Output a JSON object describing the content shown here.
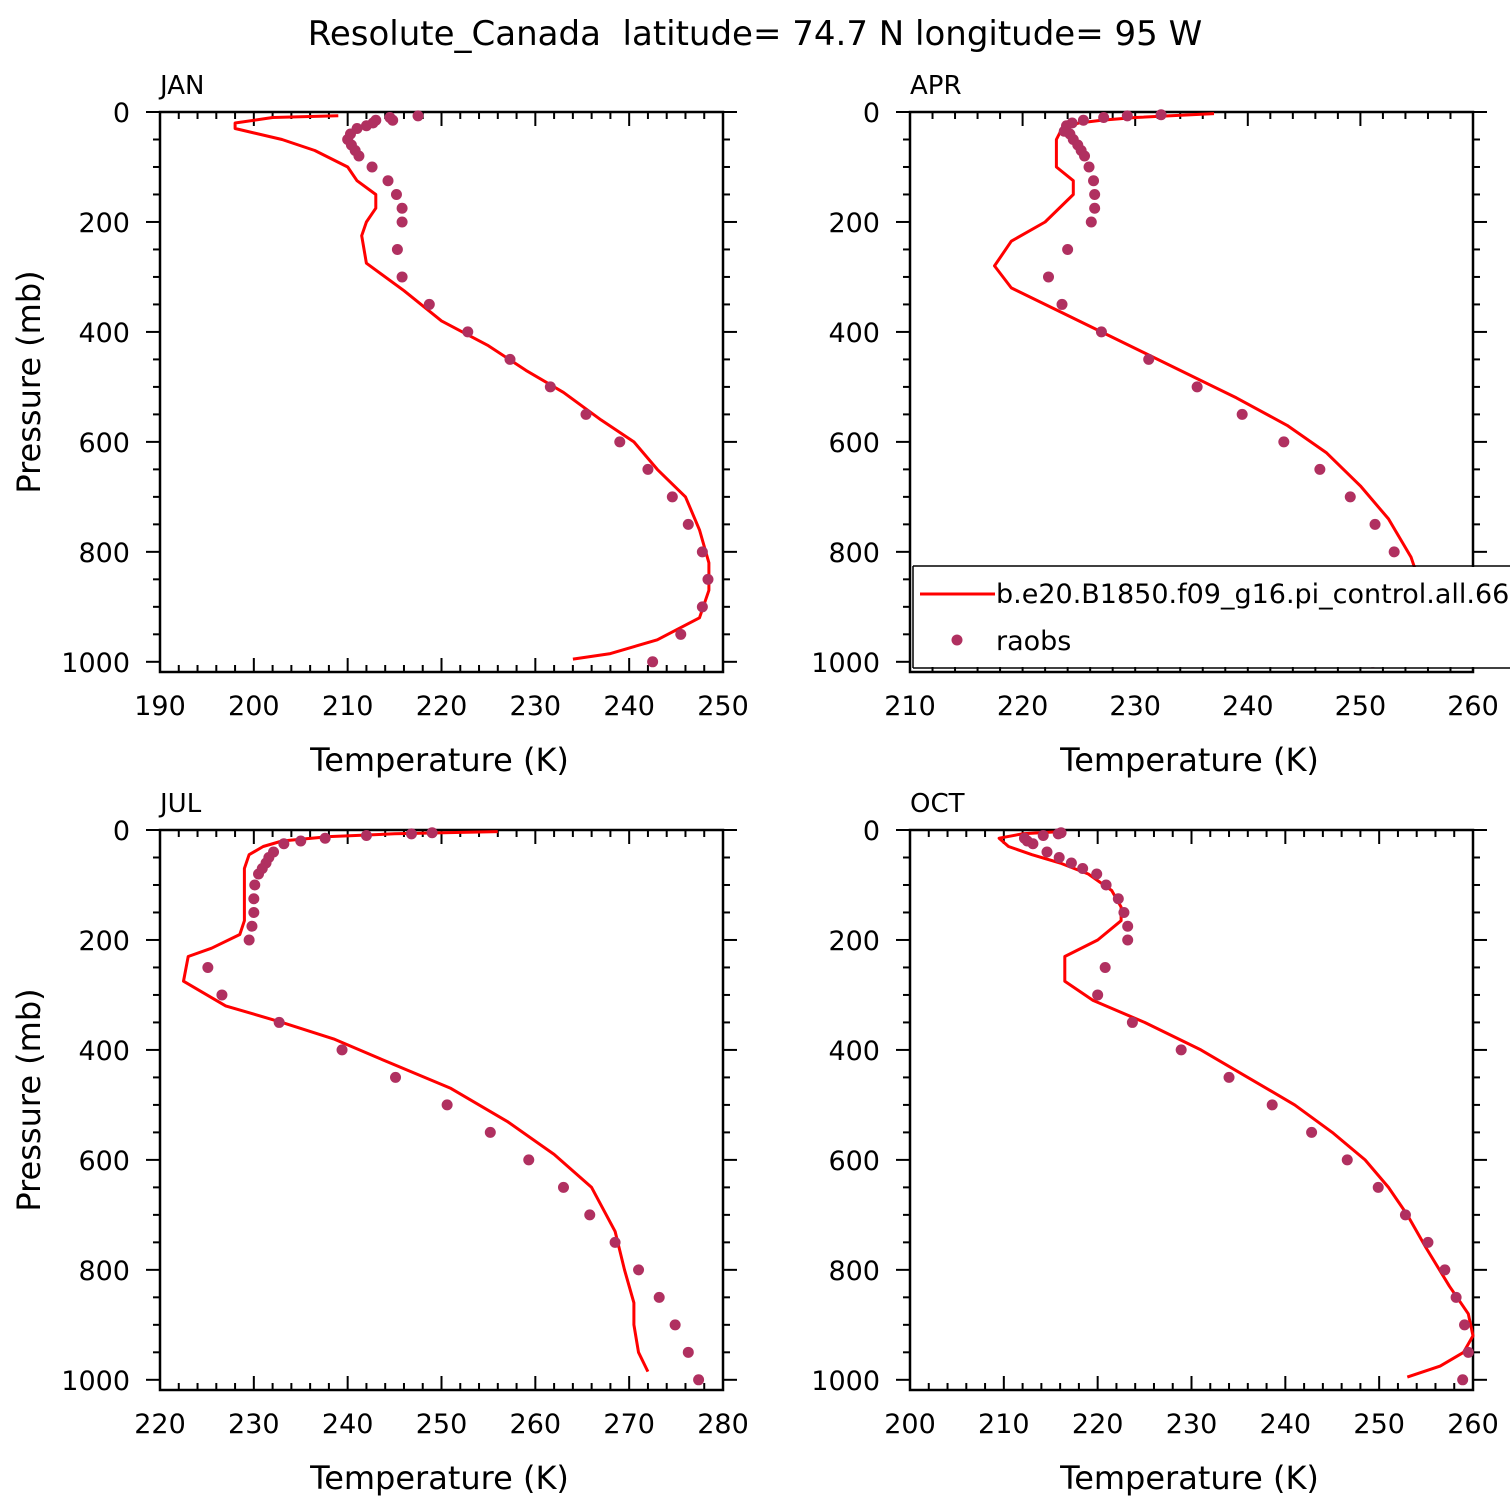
{
  "figure": {
    "title": "Resolute_Canada  latitude= 74.7 N longitude= 95 W",
    "xlabel": "Temperature (K)",
    "ylabel": "Pressure (mb)",
    "legend": {
      "model": "b.e20.B1850.f09_g16.pi_control.all.66",
      "obs": "raobs",
      "placement": "bottom-right of APR panel"
    },
    "colors": {
      "model": "#ff0000",
      "obs": "#b03060",
      "axes": "#000000"
    }
  },
  "chart_data": [
    {
      "type": "line+scatter",
      "panel": "JAN",
      "xlim": [
        190,
        250
      ],
      "ylim": [
        1000,
        0
      ],
      "y_reversed": true,
      "xticks": [
        190,
        200,
        210,
        220,
        230,
        240,
        250
      ],
      "yticks": [
        0,
        200,
        400,
        600,
        800,
        1000
      ],
      "series": [
        {
          "name": "b.e20.B1850.f09_g16.pi_control.all.66",
          "kind": "line",
          "points": [
            [
              209,
              7
            ],
            [
              202,
              10
            ],
            [
              198,
              20
            ],
            [
              198,
              30
            ],
            [
              203,
              50
            ],
            [
              206.5,
              70
            ],
            [
              210,
              100
            ],
            [
              211,
              125
            ],
            [
              213,
              150
            ],
            [
              213,
              175
            ],
            [
              212,
              200
            ],
            [
              211.5,
              225
            ],
            [
              212,
              275
            ],
            [
              216,
              325
            ],
            [
              220,
              380
            ],
            [
              225,
              425
            ],
            [
              229,
              470
            ],
            [
              233,
              510
            ],
            [
              237,
              560
            ],
            [
              240.5,
              600
            ],
            [
              243,
              650
            ],
            [
              246,
              700
            ],
            [
              247.5,
              760
            ],
            [
              248.5,
              820
            ],
            [
              248.5,
              870
            ],
            [
              247.5,
              920
            ],
            [
              243,
              960
            ],
            [
              238,
              985
            ],
            [
              234,
              995
            ]
          ]
        },
        {
          "name": "raobs",
          "kind": "scatter",
          "points": [
            [
              217.5,
              7
            ],
            [
              214.5,
              10
            ],
            [
              213,
              15
            ],
            [
              214.8,
              15
            ],
            [
              212.7,
              20
            ],
            [
              212,
              25
            ],
            [
              211,
              30
            ],
            [
              210.3,
              40
            ],
            [
              210,
              50
            ],
            [
              210.4,
              60
            ],
            [
              210.8,
              70
            ],
            [
              211.2,
              80
            ],
            [
              212.6,
              100
            ],
            [
              214.3,
              125
            ],
            [
              215.2,
              150
            ],
            [
              215.8,
              175
            ],
            [
              215.8,
              200
            ],
            [
              215.3,
              250
            ],
            [
              215.8,
              300
            ],
            [
              218.7,
              350
            ],
            [
              222.8,
              400
            ],
            [
              227.3,
              450
            ],
            [
              231.6,
              500
            ],
            [
              235.4,
              550
            ],
            [
              239,
              600
            ],
            [
              242,
              650
            ],
            [
              244.6,
              700
            ],
            [
              246.3,
              750
            ],
            [
              247.8,
              800
            ],
            [
              248.4,
              850
            ],
            [
              247.8,
              900
            ],
            [
              245.5,
              950
            ],
            [
              242.5,
              1000
            ]
          ]
        }
      ]
    },
    {
      "type": "line+scatter",
      "panel": "APR",
      "xlim": [
        210,
        260
      ],
      "ylim": [
        1000,
        0
      ],
      "y_reversed": true,
      "xticks": [
        210,
        220,
        230,
        240,
        250,
        260
      ],
      "yticks": [
        0,
        200,
        400,
        600,
        800,
        1000
      ],
      "series": [
        {
          "name": "b.e20.B1850.f09_g16.pi_control.all.66",
          "kind": "line",
          "points": [
            [
              237,
              3
            ],
            [
              230,
              10
            ],
            [
              227,
              15
            ],
            [
              225,
              20
            ],
            [
              223.5,
              30
            ],
            [
              223,
              50
            ],
            [
              223,
              80
            ],
            [
              223,
              100
            ],
            [
              224.5,
              125
            ],
            [
              224.5,
              150
            ],
            [
              222,
              200
            ],
            [
              219,
              235
            ],
            [
              217.5,
              280
            ],
            [
              219,
              320
            ],
            [
              224,
              370
            ],
            [
              229,
              420
            ],
            [
              234,
              470
            ],
            [
              239,
              520
            ],
            [
              243.5,
              570
            ],
            [
              247,
              620
            ],
            [
              250,
              680
            ],
            [
              252.5,
              740
            ],
            [
              254.5,
              810
            ],
            [
              255.5,
              870
            ],
            [
              255.5,
              920
            ],
            [
              253,
              960
            ],
            [
              249,
              985
            ],
            [
              247,
              995
            ]
          ]
        },
        {
          "name": "raobs",
          "kind": "scatter",
          "points": [
            [
              232.3,
              5
            ],
            [
              229.3,
              7
            ],
            [
              227.2,
              10
            ],
            [
              225.4,
              15
            ],
            [
              224.4,
              20
            ],
            [
              223.9,
              25
            ],
            [
              223.7,
              35
            ],
            [
              224.2,
              40
            ],
            [
              224.5,
              50
            ],
            [
              224.9,
              60
            ],
            [
              225.2,
              70
            ],
            [
              225.5,
              80
            ],
            [
              225.9,
              100
            ],
            [
              226.3,
              125
            ],
            [
              226.4,
              150
            ],
            [
              226.4,
              175
            ],
            [
              226.1,
              200
            ],
            [
              224.0,
              250
            ],
            [
              222.3,
              300
            ],
            [
              223.5,
              350
            ],
            [
              227,
              400
            ],
            [
              231.2,
              450
            ],
            [
              235.5,
              500
            ],
            [
              239.5,
              550
            ],
            [
              243.2,
              600
            ],
            [
              246.4,
              650
            ],
            [
              249.1,
              700
            ],
            [
              251.3,
              750
            ],
            [
              253,
              800
            ],
            [
              253.8,
              850
            ],
            [
              254,
              900
            ],
            [
              253.3,
              950
            ],
            [
              251.1,
              1000
            ]
          ]
        }
      ]
    },
    {
      "type": "line+scatter",
      "panel": "JUL",
      "xlim": [
        220,
        280
      ],
      "ylim": [
        1000,
        0
      ],
      "y_reversed": true,
      "xticks": [
        220,
        230,
        240,
        250,
        260,
        270,
        280
      ],
      "yticks": [
        0,
        200,
        400,
        600,
        800,
        1000
      ],
      "series": [
        {
          "name": "b.e20.B1850.f09_g16.pi_control.all.66",
          "kind": "line",
          "points": [
            [
              256,
              3
            ],
            [
              245,
              7
            ],
            [
              238,
              12
            ],
            [
              233,
              20
            ],
            [
              231,
              30
            ],
            [
              229.5,
              45
            ],
            [
              229,
              70
            ],
            [
              229,
              90
            ],
            [
              229,
              130
            ],
            [
              229,
              165
            ],
            [
              228.5,
              190
            ],
            [
              225.5,
              215
            ],
            [
              223,
              230
            ],
            [
              222.5,
              275
            ],
            [
              227,
              320
            ],
            [
              233,
              350
            ],
            [
              238.5,
              380
            ],
            [
              244,
              420
            ],
            [
              251,
              470
            ],
            [
              257,
              530
            ],
            [
              262,
              590
            ],
            [
              266,
              650
            ],
            [
              268.5,
              730
            ],
            [
              269.5,
              800
            ],
            [
              270.5,
              860
            ],
            [
              270.5,
              900
            ],
            [
              271,
              950
            ],
            [
              272,
              985
            ]
          ]
        },
        {
          "name": "raobs",
          "kind": "scatter",
          "points": [
            [
              249,
              5
            ],
            [
              246.8,
              7
            ],
            [
              242,
              10
            ],
            [
              237.6,
              15
            ],
            [
              235,
              20
            ],
            [
              233.2,
              25
            ],
            [
              232.1,
              40
            ],
            [
              231.6,
              50
            ],
            [
              231.3,
              60
            ],
            [
              230.9,
              70
            ],
            [
              230.5,
              80
            ],
            [
              230.1,
              100
            ],
            [
              230,
              125
            ],
            [
              230,
              150
            ],
            [
              229.8,
              175
            ],
            [
              229.5,
              200
            ],
            [
              225.1,
              250
            ],
            [
              226.6,
              300
            ],
            [
              232.7,
              350
            ],
            [
              239.4,
              400
            ],
            [
              245.1,
              450
            ],
            [
              250.6,
              500
            ],
            [
              255.2,
              550
            ],
            [
              259.3,
              600
            ],
            [
              263,
              650
            ],
            [
              265.8,
              700
            ],
            [
              268.5,
              750
            ],
            [
              271,
              800
            ],
            [
              273.2,
              850
            ],
            [
              274.9,
              900
            ],
            [
              276.3,
              950
            ],
            [
              277.4,
              1000
            ]
          ]
        }
      ]
    },
    {
      "type": "line+scatter",
      "panel": "OCT",
      "xlim": [
        200,
        260
      ],
      "ylim": [
        1000,
        0
      ],
      "y_reversed": true,
      "xticks": [
        200,
        210,
        220,
        230,
        240,
        250,
        260
      ],
      "yticks": [
        0,
        200,
        400,
        600,
        800,
        1000
      ],
      "series": [
        {
          "name": "b.e20.B1850.f09_g16.pi_control.all.66",
          "kind": "line",
          "points": [
            [
              216,
              3
            ],
            [
              212,
              7
            ],
            [
              209.5,
              15
            ],
            [
              210.5,
              30
            ],
            [
              213,
              45
            ],
            [
              216,
              60
            ],
            [
              219,
              80
            ],
            [
              221.5,
              110
            ],
            [
              222.5,
              140
            ],
            [
              222.5,
              165
            ],
            [
              220,
              200
            ],
            [
              216.5,
              230
            ],
            [
              216.5,
              275
            ],
            [
              219.5,
              310
            ],
            [
              225,
              350
            ],
            [
              231,
              400
            ],
            [
              236,
              450
            ],
            [
              241,
              500
            ],
            [
              245,
              550
            ],
            [
              248.5,
              600
            ],
            [
              251,
              650
            ],
            [
              253,
              700
            ],
            [
              255,
              760
            ],
            [
              257.5,
              830
            ],
            [
              259.5,
              880
            ],
            [
              260,
              920
            ],
            [
              259,
              950
            ],
            [
              256.5,
              975
            ],
            [
              253,
              995
            ]
          ]
        },
        {
          "name": "raobs",
          "kind": "scatter",
          "points": [
            [
              216.1,
              5
            ],
            [
              215.8,
              7
            ],
            [
              214.2,
              10
            ],
            [
              212.2,
              15
            ],
            [
              212.5,
              20
            ],
            [
              213.1,
              25
            ],
            [
              214.6,
              40
            ],
            [
              215.9,
              50
            ],
            [
              217.2,
              60
            ],
            [
              218.4,
              70
            ],
            [
              219.9,
              80
            ],
            [
              220.9,
              100
            ],
            [
              222.2,
              125
            ],
            [
              222.8,
              150
            ],
            [
              223.2,
              175
            ],
            [
              223.2,
              200
            ],
            [
              220.8,
              250
            ],
            [
              220.0,
              300
            ],
            [
              223.7,
              350
            ],
            [
              228.9,
              400
            ],
            [
              234,
              450
            ],
            [
              238.6,
              500
            ],
            [
              242.8,
              550
            ],
            [
              246.6,
              600
            ],
            [
              249.9,
              650
            ],
            [
              252.8,
              700
            ],
            [
              255.2,
              750
            ],
            [
              257,
              800
            ],
            [
              258.2,
              850
            ],
            [
              259.1,
              900
            ],
            [
              259.5,
              950
            ],
            [
              258.9,
              1000
            ]
          ]
        }
      ]
    }
  ]
}
